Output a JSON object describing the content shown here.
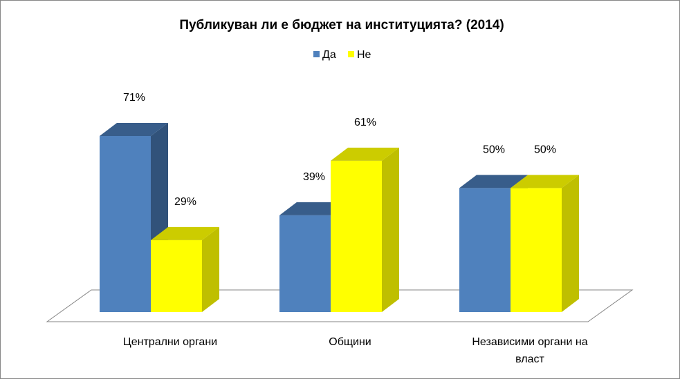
{
  "chart_data": {
    "type": "bar",
    "title": "Публикуван ли е бюджет на институцията? (2014)",
    "categories": [
      [
        "Централни органи"
      ],
      [
        "Общини"
      ],
      [
        "Независими органи на",
        "власт"
      ]
    ],
    "series": [
      {
        "name": "Да",
        "values": [
          71,
          39,
          50
        ],
        "labels": [
          "71%",
          "39%",
          "50%"
        ],
        "color": "#4F81BD",
        "top_color": "#385D8A",
        "side_color": "#31527A"
      },
      {
        "name": "Не",
        "values": [
          29,
          61,
          50
        ],
        "labels": [
          "29%",
          "61%",
          "50%"
        ],
        "color": "#FFFF00",
        "top_color": "#CCCC00",
        "side_color": "#BFBF00"
      }
    ],
    "ylim": [
      0,
      100
    ],
    "grid": false,
    "legend_position": "top",
    "three_d": true
  }
}
